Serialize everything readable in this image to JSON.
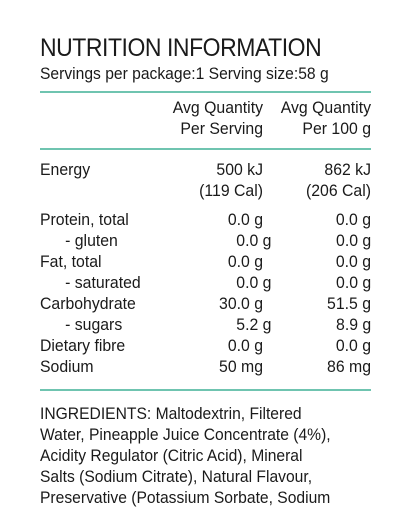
{
  "title": "NUTRITION INFORMATION",
  "servings_line": "Servings per package:1 Serving size:58 g",
  "header": {
    "per_serving_line1": "Avg Quantity",
    "per_serving_line2": "Per Serving",
    "per_100_line1": "Avg Quantity",
    "per_100_line2": "Per 100 g"
  },
  "rows": [
    {
      "name": "Energy",
      "serving": "500 kJ",
      "per100": "862 kJ"
    },
    {
      "name": "",
      "serving": "(119 Cal)",
      "per100": "(206 Cal)"
    },
    {
      "name": "Protein, total",
      "serving": "0.0 g",
      "per100": "0.0 g"
    },
    {
      "name": "- gluten",
      "serving": "0.0 g",
      "per100": "0.0 g"
    },
    {
      "name": "Fat, total",
      "serving": "0.0 g",
      "per100": "0.0 g"
    },
    {
      "name": "- saturated",
      "serving": "0.0 g",
      "per100": "0.0 g"
    },
    {
      "name": "Carbohydrate",
      "serving": "30.0 g",
      "per100": "51.5 g"
    },
    {
      "name": "- sugars",
      "serving": "5.2 g",
      "per100": "8.9 g"
    },
    {
      "name": "Dietary fibre",
      "serving": "0.0 g",
      "per100": "0.0 g"
    },
    {
      "name": "Sodium",
      "serving": "50 mg",
      "per100": "86 mg"
    }
  ],
  "ingredients_lines": [
    "INGREDIENTS: Maltodextrin, Filtered",
    "Water, Pineapple Juice Concentrate (4%),",
    "Acidity Regulator (Citric Acid), Mineral",
    "Salts (Sodium Citrate), Natural Flavour,",
    "Preservative (Potassium Sorbate, Sodium"
  ],
  "colors": {
    "rule": "#6fc4b0",
    "text": "#1a1a1a"
  }
}
